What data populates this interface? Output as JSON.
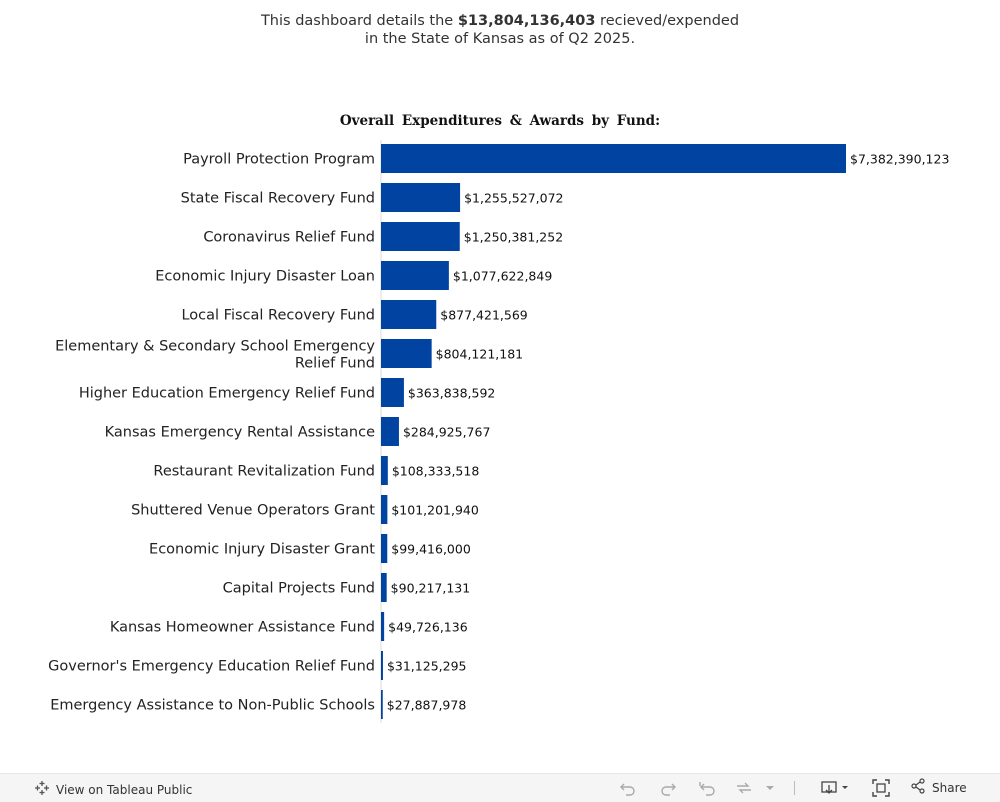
{
  "intro": {
    "line1_prefix": "This dashboard details the ",
    "total": "$13,804,136,403",
    "line1_suffix": " recieved/expended",
    "line2": "in the State of Kansas as of Q2 2025."
  },
  "chart_data": {
    "type": "bar",
    "orientation": "horizontal",
    "title": "Overall Expenditures & Awards by Fund:",
    "categories": [
      "Payroll Protection Program",
      "State Fiscal Recovery Fund",
      "Coronavirus Relief Fund",
      "Economic Injury Disaster Loan",
      "Local Fiscal Recovery Fund",
      "Elementary & Secondary School Emergency Relief Fund",
      "Higher Education Emergency Relief Fund",
      "Kansas Emergency Rental Assistance",
      "Restaurant Revitalization Fund",
      "Shuttered Venue Operators Grant",
      "Economic Injury Disaster Grant",
      "Capital Projects Fund",
      "Kansas Homeowner Assistance Fund",
      "Governor's Emergency Education Relief Fund",
      "Emergency Assistance to Non-Public Schools"
    ],
    "category_lines": [
      [
        "Payroll Protection Program"
      ],
      [
        "State Fiscal Recovery Fund"
      ],
      [
        "Coronavirus Relief Fund"
      ],
      [
        "Economic Injury Disaster Loan"
      ],
      [
        "Local Fiscal Recovery Fund"
      ],
      [
        "Elementary & Secondary School Emergency",
        "Relief Fund"
      ],
      [
        "Higher Education Emergency Relief Fund"
      ],
      [
        "Kansas Emergency Rental Assistance"
      ],
      [
        "Restaurant Revitalization Fund"
      ],
      [
        "Shuttered Venue Operators Grant"
      ],
      [
        "Economic Injury Disaster Grant"
      ],
      [
        "Capital Projects Fund"
      ],
      [
        "Kansas Homeowner Assistance Fund"
      ],
      [
        "Governor's Emergency Education Relief Fund"
      ],
      [
        "Emergency Assistance to Non-Public Schools"
      ]
    ],
    "values": [
      7382390123,
      1255527072,
      1250381252,
      1077622849,
      877421569,
      804121181,
      363838592,
      284925767,
      108333518,
      101201940,
      99416000,
      90217131,
      49726136,
      31125295,
      27887978
    ],
    "value_labels": [
      "$7,382,390,123",
      "$1,255,527,072",
      "$1,250,381,252",
      "$1,077,622,849",
      "$877,421,569",
      "$804,121,181",
      "$363,838,592",
      "$284,925,767",
      "$108,333,518",
      "$101,201,940",
      "$99,416,000",
      "$90,217,131",
      "$49,726,136",
      "$31,125,295",
      "$27,887,978"
    ],
    "bar_color": "#0043a0",
    "grid": false,
    "legend": "none"
  },
  "footer": {
    "view_label": "View on Tableau Public",
    "share_label": "Share"
  }
}
